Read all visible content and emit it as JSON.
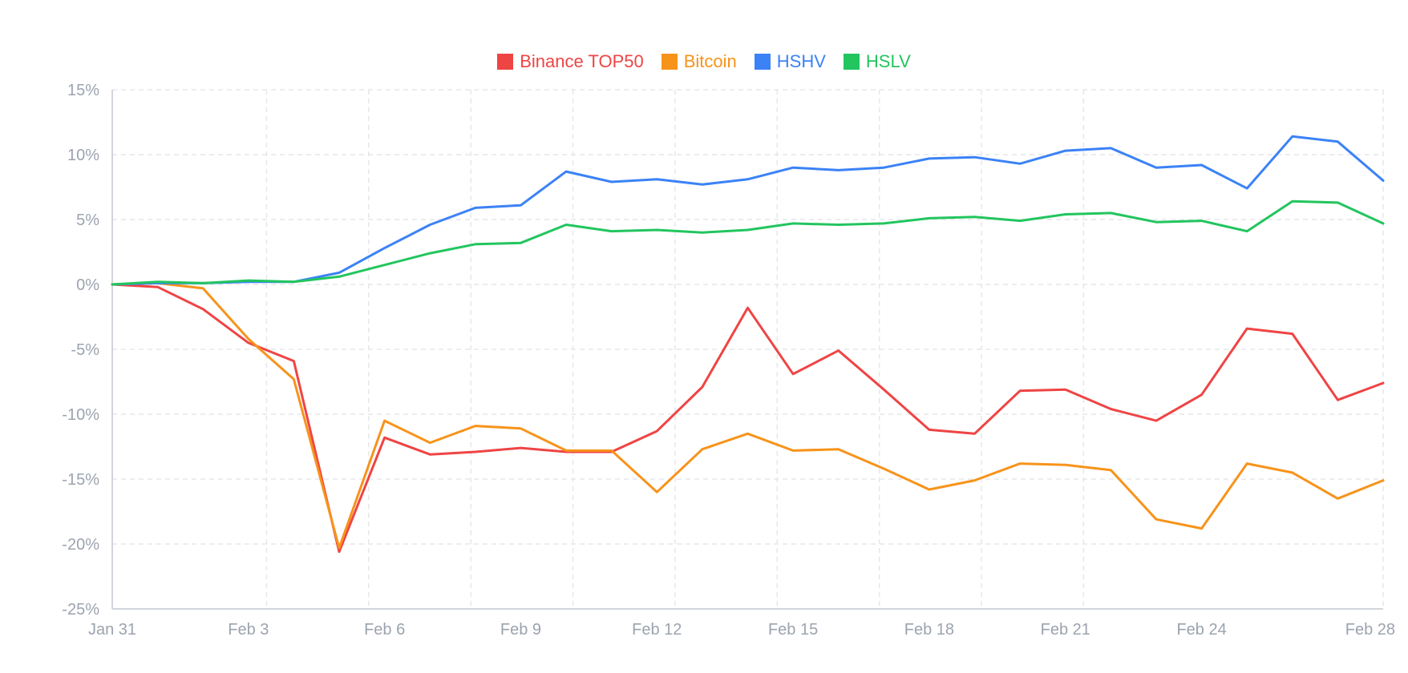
{
  "chart_data": {
    "type": "line",
    "title": "",
    "xlabel": "",
    "ylabel": "",
    "ylim": [
      -25,
      15
    ],
    "y_ticks": [
      15,
      10,
      5,
      0,
      -5,
      -10,
      -15,
      -20,
      -25
    ],
    "y_tick_labels": [
      "15%",
      "10%",
      "5%",
      "0%",
      "-5%",
      "-10%",
      "-15%",
      "-20%",
      "-25%"
    ],
    "x_tick_labels": [
      "Jan 31",
      "Feb 3",
      "Feb 6",
      "Feb 9",
      "Feb 12",
      "Feb 15",
      "Feb 18",
      "Feb 21",
      "Feb 24",
      "Feb 28"
    ],
    "x_tick_indices": [
      0,
      3,
      6,
      9,
      12,
      15,
      18,
      21,
      24,
      28
    ],
    "grid": true,
    "legend_position": "top-center",
    "x": [
      "Jan 31",
      "Feb 1",
      "Feb 2",
      "Feb 3",
      "Feb 4",
      "Feb 5",
      "Feb 6",
      "Feb 7",
      "Feb 8",
      "Feb 9",
      "Feb 10",
      "Feb 11",
      "Feb 12",
      "Feb 13",
      "Feb 14",
      "Feb 15",
      "Feb 16",
      "Feb 17",
      "Feb 18",
      "Feb 19",
      "Feb 20",
      "Feb 21",
      "Feb 22",
      "Feb 23",
      "Feb 24",
      "Feb 25",
      "Feb 26",
      "Feb 27",
      "Feb 28"
    ],
    "series": [
      {
        "name": "Binance TOP50",
        "color": "#ef4444",
        "values": [
          0,
          -0.2,
          -1.9,
          -4.5,
          -5.9,
          -20.6,
          -11.8,
          -13.1,
          -12.9,
          -12.6,
          -12.9,
          -12.9,
          -11.3,
          -7.9,
          -1.8,
          -6.9,
          -5.1,
          -8.1,
          -11.2,
          -11.5,
          -8.2,
          -8.1,
          -9.6,
          -10.5,
          -8.5,
          -3.4,
          -3.8,
          -8.9,
          -7.6
        ]
      },
      {
        "name": "Bitcoin",
        "color": "#f7931a",
        "values": [
          0,
          0.1,
          -0.3,
          -4.2,
          -7.3,
          -20.3,
          -10.5,
          -12.2,
          -10.9,
          -11.1,
          -12.8,
          -12.8,
          -16.0,
          -12.7,
          -11.5,
          -12.8,
          -12.7,
          -14.2,
          -15.8,
          -15.1,
          -13.8,
          -13.9,
          -14.3,
          -18.1,
          -18.8,
          -13.8,
          -14.5,
          -16.5,
          -15.1
        ]
      },
      {
        "name": "HSHV",
        "color": "#3b82f6",
        "values": [
          0,
          0.1,
          0.1,
          0.2,
          0.2,
          0.9,
          2.8,
          4.6,
          5.9,
          6.1,
          8.7,
          7.9,
          8.1,
          7.7,
          8.1,
          9.0,
          8.8,
          9.0,
          9.7,
          9.8,
          9.3,
          10.3,
          10.5,
          9.0,
          9.2,
          7.4,
          11.4,
          11.0,
          8.0
        ]
      },
      {
        "name": "HSLV",
        "color": "#22c55e",
        "values": [
          0,
          0.2,
          0.1,
          0.3,
          0.2,
          0.6,
          1.5,
          2.4,
          3.1,
          3.2,
          4.6,
          4.1,
          4.2,
          4.0,
          4.2,
          4.7,
          4.6,
          4.7,
          5.1,
          5.2,
          4.9,
          5.4,
          5.5,
          4.8,
          4.9,
          4.1,
          6.4,
          6.3,
          4.7
        ]
      }
    ]
  },
  "colors": {
    "grid": "#e5e7eb",
    "axis": "#d1d5db",
    "tick_text": "#9ca3af"
  }
}
